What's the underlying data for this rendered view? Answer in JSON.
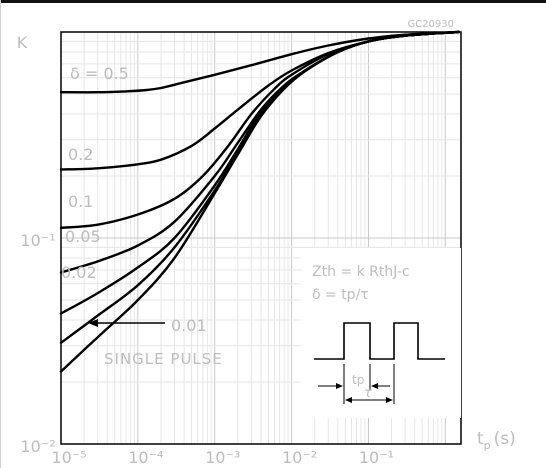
{
  "page": {
    "figure_code": "GC20930"
  },
  "chart_data": {
    "type": "line",
    "xscale": "log",
    "yscale": "log",
    "xlim": [
      1e-05,
      1.6
    ],
    "ylim": [
      0.01,
      1
    ],
    "ylabel": "K",
    "xlabel": "tp (s)",
    "grid": true,
    "x_tick_labels": [
      "10⁻⁵",
      "10⁻⁴",
      "10⁻³",
      "10⁻²",
      "10⁻¹"
    ],
    "x_tick_values": [
      1e-05,
      0.0001,
      0.001,
      0.01,
      0.1
    ],
    "y_tick_labels": [
      "10⁻¹",
      "10⁻²"
    ],
    "y_tick_values": [
      0.1,
      0.01
    ],
    "x_unit_label": "t",
    "x_unit_sub": "p",
    "x_unit_suffix": "(s)",
    "series": [
      {
        "name": "δ = 0.5",
        "x": [
          1e-05,
          3e-05,
          7e-05,
          0.00013,
          0.0002,
          0.0004,
          0.001,
          0.003,
          0.01,
          0.03,
          0.1,
          0.3,
          1.5
        ],
        "y": [
          0.51,
          0.51,
          0.515,
          0.523,
          0.535,
          0.57,
          0.62,
          0.69,
          0.78,
          0.86,
          0.93,
          0.97,
          1.0
        ]
      },
      {
        "name": "0.2",
        "x": [
          1e-05,
          3e-05,
          0.0001,
          0.0002,
          0.0005,
          0.001,
          0.002,
          0.005,
          0.01,
          0.03,
          0.1,
          0.3,
          1.5
        ],
        "y": [
          0.215,
          0.218,
          0.228,
          0.24,
          0.28,
          0.34,
          0.42,
          0.55,
          0.65,
          0.79,
          0.9,
          0.96,
          1.0
        ]
      },
      {
        "name": "0.1",
        "x": [
          1e-05,
          3e-05,
          0.0001,
          0.0003,
          0.0007,
          0.0015,
          0.003,
          0.006,
          0.01,
          0.03,
          0.1,
          0.3,
          1.5
        ],
        "y": [
          0.112,
          0.116,
          0.13,
          0.155,
          0.2,
          0.28,
          0.4,
          0.53,
          0.62,
          0.78,
          0.9,
          0.96,
          1.0
        ]
      },
      {
        "name": "0.05",
        "x": [
          1e-05,
          3e-05,
          0.0001,
          0.0003,
          0.001,
          0.002,
          0.004,
          0.008,
          0.015,
          0.04,
          0.1,
          0.3,
          1.5
        ],
        "y": [
          0.068,
          0.077,
          0.092,
          0.12,
          0.2,
          0.29,
          0.42,
          0.55,
          0.65,
          0.8,
          0.9,
          0.96,
          1.0
        ]
      },
      {
        "name": "0.02",
        "x": [
          1e-05,
          3e-05,
          0.0001,
          0.0003,
          0.001,
          0.002,
          0.004,
          0.008,
          0.015,
          0.04,
          0.1,
          0.3,
          1.5
        ],
        "y": [
          0.043,
          0.054,
          0.072,
          0.1,
          0.18,
          0.27,
          0.41,
          0.54,
          0.65,
          0.8,
          0.9,
          0.96,
          1.0
        ]
      },
      {
        "name": "0.01",
        "x": [
          1e-05,
          3e-05,
          0.0001,
          0.0003,
          0.001,
          0.002,
          0.004,
          0.008,
          0.015,
          0.04,
          0.1,
          0.3,
          1.5
        ],
        "y": [
          0.031,
          0.042,
          0.059,
          0.09,
          0.17,
          0.26,
          0.4,
          0.54,
          0.65,
          0.8,
          0.9,
          0.96,
          1.0
        ]
      },
      {
        "name": "SINGLE PULSE",
        "x": [
          1e-05,
          3e-05,
          0.0001,
          0.0003,
          0.001,
          0.002,
          0.004,
          0.008,
          0.015,
          0.04,
          0.1,
          0.3,
          1.5
        ],
        "y": [
          0.0225,
          0.033,
          0.05,
          0.08,
          0.165,
          0.255,
          0.39,
          0.53,
          0.645,
          0.8,
          0.9,
          0.96,
          1.0
        ]
      }
    ],
    "annotations": {
      "label_delta": "δ = 0.5",
      "label_02": "0.2",
      "label_01": "0.1",
      "label_005": "0.05",
      "label_002": "0.02",
      "label_001": "0.01",
      "label_single": "SINGLE PULSE",
      "formula_zth": "Zth = k RthJ-c",
      "formula_delta": "δ = tp/τ",
      "pulse_tp": "tp",
      "pulse_tau": "τ"
    }
  }
}
